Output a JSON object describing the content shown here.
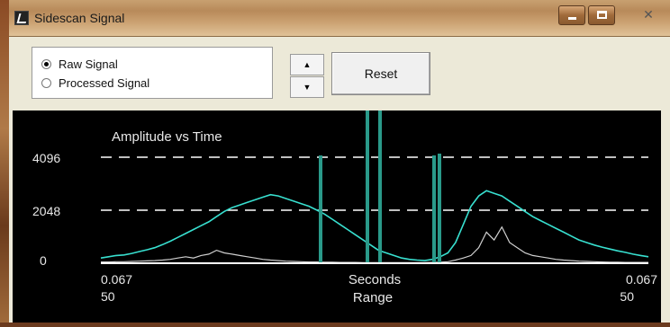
{
  "window": {
    "title": "Sidescan Signal",
    "controls": {
      "minimize": "minimize",
      "maximize": "maximize",
      "close": "close"
    }
  },
  "signal_mode": {
    "options": [
      {
        "label": "Raw Signal",
        "selected": true
      },
      {
        "label": "Processed Signal",
        "selected": false
      }
    ]
  },
  "spinner": {
    "up": "▲",
    "down": "▼"
  },
  "reset_button": {
    "label": "Reset"
  },
  "chart_data": {
    "type": "line",
    "title": "Amplitude vs Time",
    "y_ticks": [
      "4096",
      "2048",
      "0"
    ],
    "ylim": [
      0,
      4096
    ],
    "grid": true,
    "xlabel": "Seconds",
    "xlabel2": "Range",
    "x_left_label": "0.067",
    "x_right_label": "0.067",
    "range_left_label": "50",
    "range_right_label": "50",
    "colors": {
      "raw": "#38e0d0",
      "processed": "#d0d0d0",
      "marker": "#2a9a8a",
      "axis": "#ffffff",
      "grid": "#ffffff"
    },
    "series": [
      {
        "values": [
          200,
          250,
          300,
          320,
          380,
          450,
          520,
          600,
          720,
          850,
          1000,
          1150,
          1300,
          1450,
          1600,
          1800,
          2000,
          2150,
          2250,
          2350,
          2450,
          2550,
          2650,
          2600,
          2500,
          2400,
          2300,
          2200,
          2050,
          1900,
          1700,
          1500,
          1300,
          1100,
          900,
          700,
          500,
          400,
          300,
          200,
          150,
          120,
          100,
          150,
          250,
          400,
          800,
          1500,
          2200,
          2600,
          2800,
          2700,
          2600,
          2400,
          2200,
          2000,
          1800,
          1650,
          1500,
          1350,
          1200,
          1050,
          900,
          800,
          700,
          620,
          550,
          480,
          420,
          350,
          300,
          250
        ]
      },
      {
        "values": [
          50,
          50,
          60,
          60,
          70,
          80,
          90,
          100,
          120,
          150,
          200,
          250,
          200,
          300,
          350,
          500,
          400,
          350,
          300,
          250,
          200,
          150,
          120,
          100,
          80,
          70,
          60,
          50,
          50,
          40,
          40,
          30,
          30,
          30,
          20,
          20,
          20,
          20,
          20,
          20,
          20,
          20,
          20,
          30,
          40,
          60,
          120,
          200,
          300,
          600,
          1200,
          900,
          1400,
          800,
          600,
          400,
          300,
          250,
          200,
          150,
          120,
          100,
          80,
          70,
          60,
          50,
          40,
          40,
          30,
          30,
          30,
          30
        ]
      }
    ]
  }
}
